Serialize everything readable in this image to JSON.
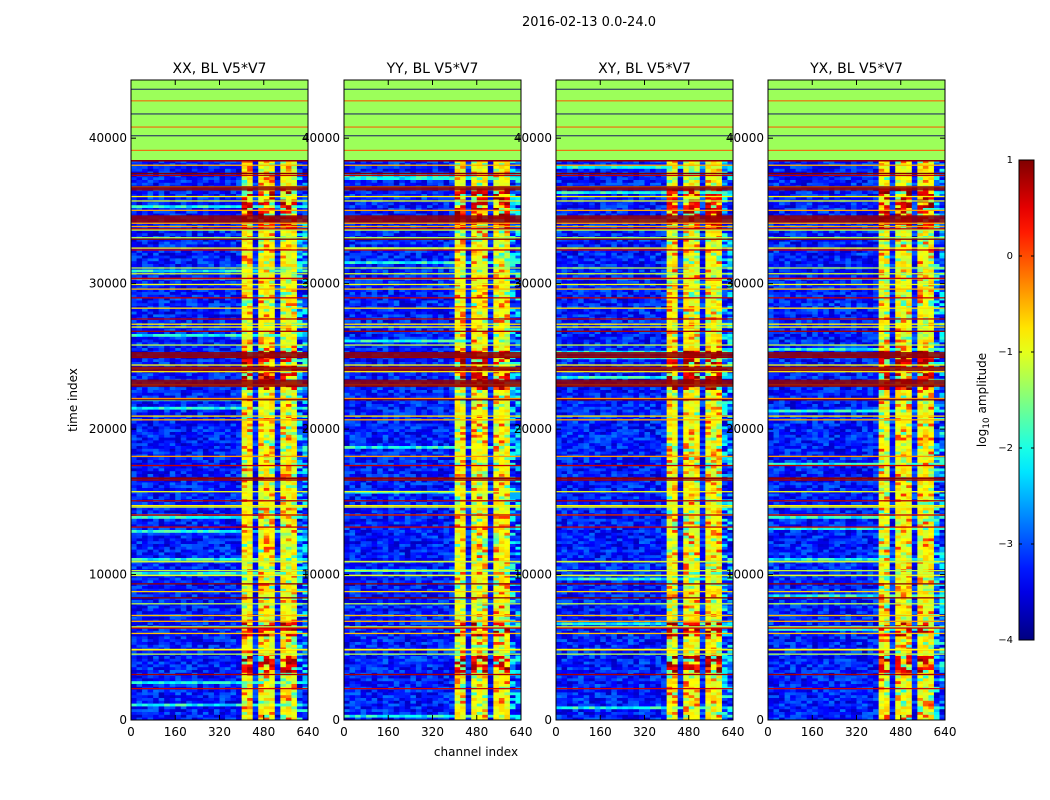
{
  "figure": {
    "suptitle": "2016-02-13 0.0-24.0",
    "xlabel": "channel index",
    "ylabel": "time index"
  },
  "chart_data": {
    "type": "heatmap",
    "xlim": [
      0,
      640
    ],
    "ylim": [
      0,
      44000
    ],
    "x_ticks": [
      0,
      160,
      320,
      480,
      640
    ],
    "y_ticks": [
      0,
      10000,
      20000,
      30000,
      40000
    ],
    "data_end_time_index": 38500,
    "panels": [
      {
        "title": "XX, BL V5*V7",
        "variant": 0
      },
      {
        "title": "YY, BL V5*V7",
        "variant": 1
      },
      {
        "title": "XY, BL V5*V7",
        "variant": 2
      },
      {
        "title": "YX, BL V5*V7",
        "variant": 3
      }
    ],
    "colorbar": {
      "label": "log10 amplitude",
      "range": [
        -4,
        1
      ],
      "ticks": [
        1,
        0,
        -1,
        -2,
        -3,
        -4
      ],
      "tick_labels": [
        "1",
        "0",
        "−1",
        "−2",
        "−3",
        "−4"
      ],
      "colormap": "jet"
    },
    "bright_channel_ranges": [
      [
        405,
        440
      ],
      [
        440,
        450
      ],
      [
        458,
        492
      ],
      [
        500,
        530
      ],
      [
        542,
        572
      ],
      [
        580,
        597
      ]
    ],
    "saturated_time_bands": [
      [
        3200,
        4400
      ],
      [
        5800,
        6700
      ],
      [
        22800,
        25500
      ],
      [
        33700,
        36500
      ]
    ],
    "background_color": "#9cff5a"
  }
}
